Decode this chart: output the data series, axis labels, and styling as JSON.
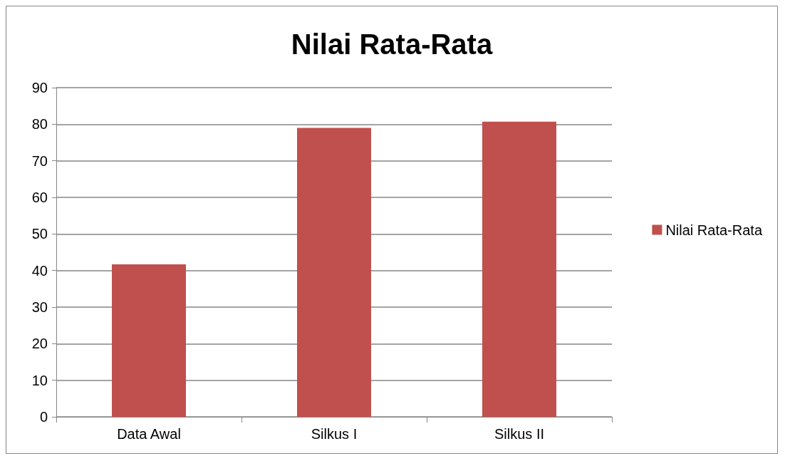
{
  "chart_data": {
    "type": "bar",
    "title": "Nilai Rata-Rata",
    "categories": [
      "Data Awal",
      "Silkus I",
      "Silkus II"
    ],
    "series": [
      {
        "name": "Nilai Rata-Rata",
        "color": "#c0504d",
        "values": [
          41.7,
          79.0,
          80.7
        ]
      }
    ],
    "ylim": [
      0,
      90
    ],
    "yticks": [
      0,
      10,
      20,
      30,
      40,
      50,
      60,
      70,
      80,
      90
    ],
    "grid": "y",
    "legend": "right"
  }
}
